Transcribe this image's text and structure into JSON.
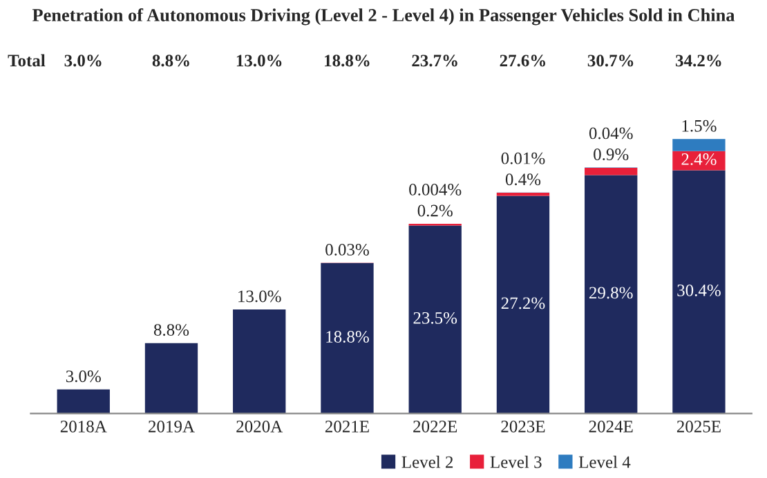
{
  "chart_data": {
    "type": "bar",
    "title": "Penetration of Autonomous Driving (Level 2 - Level 4) in Passenger Vehicles Sold in China",
    "categories": [
      "2018A",
      "2019A",
      "2020A",
      "2021E",
      "2022E",
      "2023E",
      "2024E",
      "2025E"
    ],
    "stacked": true,
    "series": [
      {
        "name": "Level 2",
        "color": "#1f2a5e",
        "values": [
          3.0,
          8.8,
          13.0,
          18.8,
          23.5,
          27.2,
          29.8,
          30.4
        ],
        "value_labels": [
          "3.0%",
          "8.8%",
          "13.0%",
          "18.8%",
          "23.5%",
          "27.2%",
          "29.8%",
          "30.4%"
        ]
      },
      {
        "name": "Level 3",
        "color": "#e8203a",
        "values": [
          null,
          null,
          null,
          0.03,
          0.2,
          0.4,
          0.9,
          2.4
        ],
        "value_labels": [
          null,
          null,
          null,
          "0.03%",
          "0.2%",
          "0.4%",
          "0.9%",
          "2.4%"
        ]
      },
      {
        "name": "Level 4",
        "color": "#2e7cc0",
        "values": [
          null,
          null,
          null,
          null,
          0.004,
          0.01,
          0.04,
          1.5
        ],
        "value_labels": [
          null,
          null,
          null,
          null,
          "0.004%",
          "0.01%",
          "0.04%",
          "1.5%"
        ]
      }
    ],
    "annotations": [
      "Total",
      "3.0%",
      "8.8%",
      "13.0%",
      "18.8%",
      "23.7%",
      "27.6%",
      "30.7%",
      "34.2%"
    ],
    "legend": "bottom",
    "grid": false
  }
}
